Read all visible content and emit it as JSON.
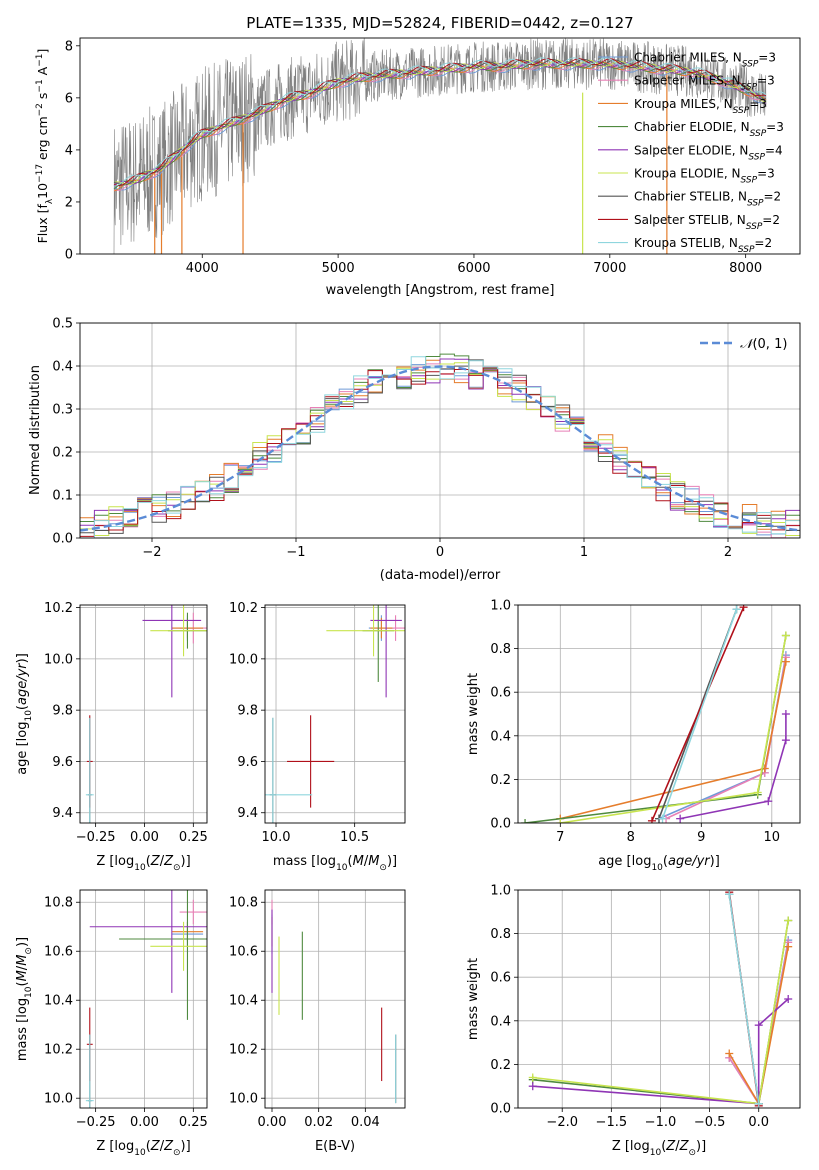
{
  "title": "PLATE=1335, MJD=52824, FIBERID=0442, z=0.127",
  "colors": {
    "Chabrier MILES": "#6f9ad8",
    "Salpeter MILES": "#e880b6",
    "Kroupa MILES": "#e57d2c",
    "Chabrier ELODIE": "#4f8a3f",
    "Salpeter ELODIE": "#8f35b5",
    "Kroupa ELODIE": "#c8e44f",
    "Chabrier STELIB": "#555555",
    "Salpeter STELIB": "#b0101a",
    "Kroupa STELIB": "#8fd6de",
    "data": "#808080",
    "normal": "#5b8bd6",
    "grid": "#b0b0b0"
  },
  "chart_data": [
    {
      "id": "spectrum",
      "type": "line",
      "title": "PLATE=1335, MJD=52824, FIBERID=0442, z=0.127",
      "xlabel": "wavelength [Angstrom, rest frame]",
      "ylabel": "Flux [f",
      "xlim": [
        3100,
        8400
      ],
      "ylim": [
        0,
        8.3
      ],
      "xticks": [
        4000,
        5000,
        6000,
        7000,
        8000
      ],
      "yticks": [
        0,
        2,
        4,
        6,
        8
      ],
      "grid": false,
      "legend_position": "right",
      "legend": [
        {
          "model": "Chabrier MILES",
          "nssp": "3"
        },
        {
          "model": "Salpeter MILES",
          "nssp": "3"
        },
        {
          "model": "Kroupa MILES",
          "nssp": "3"
        },
        {
          "model": "Chabrier ELODIE",
          "nssp": "3"
        },
        {
          "model": "Salpeter ELODIE",
          "nssp": "4"
        },
        {
          "model": "Kroupa ELODIE",
          "nssp": "3"
        },
        {
          "model": "Chabrier STELIB",
          "nssp": "2"
        },
        {
          "model": "Salpeter STELIB",
          "nssp": "2"
        },
        {
          "model": "Kroupa STELIB",
          "nssp": "2"
        }
      ],
      "continuum": {
        "x": [
          3350,
          3500,
          3700,
          3900,
          4000,
          4200,
          4400,
          4600,
          4800,
          5000,
          5200,
          5400,
          5600,
          5800,
          6000,
          6200,
          6400,
          6600,
          6800,
          7000,
          7200,
          7400,
          7600,
          7800,
          8000,
          8150
        ],
        "y": [
          2.6,
          2.8,
          3.3,
          4.2,
          4.6,
          5.0,
          5.4,
          5.9,
          6.2,
          6.6,
          6.8,
          6.9,
          7.0,
          7.1,
          7.2,
          7.2,
          7.3,
          7.3,
          7.3,
          7.3,
          7.2,
          7.1,
          7.0,
          6.7,
          6.3,
          5.9
        ]
      }
    },
    {
      "id": "residuals",
      "type": "line",
      "xlabel": "(data-model)/error",
      "ylabel": "Normed distribution",
      "xlim": [
        -2.5,
        2.5
      ],
      "ylim": [
        0,
        0.5
      ],
      "xticks": [
        -2,
        -1,
        0,
        1,
        2
      ],
      "yticks": [
        0.0,
        0.1,
        0.2,
        0.3,
        0.4,
        0.5
      ],
      "grid": true,
      "legend_position": "top-right",
      "reference_curve": "N(0,1)",
      "bin_width": 0.1,
      "bins_from": -2.5,
      "histogram": [
        0.02,
        0.03,
        0.04,
        0.05,
        0.06,
        0.07,
        0.08,
        0.09,
        0.1,
        0.12,
        0.14,
        0.16,
        0.19,
        0.21,
        0.22,
        0.24,
        0.27,
        0.3,
        0.32,
        0.35,
        0.36,
        0.37,
        0.38,
        0.39,
        0.39,
        0.4,
        0.39,
        0.38,
        0.37,
        0.36,
        0.35,
        0.33,
        0.31,
        0.28,
        0.26,
        0.23,
        0.21,
        0.18,
        0.16,
        0.14,
        0.12,
        0.1,
        0.09,
        0.07,
        0.06,
        0.05,
        0.045,
        0.04,
        0.035,
        0.03
      ]
    },
    {
      "id": "age-vs-z",
      "type": "scatter",
      "xlabel": "Z [log",
      "ylabel": "age  [log",
      "xlim": [
        -0.33,
        0.32
      ],
      "ylim": [
        9.36,
        10.21
      ],
      "xticks": [
        -0.25,
        0.0,
        0.25
      ],
      "yticks": [
        9.4,
        9.6,
        9.8,
        10.0,
        10.2
      ],
      "grid": true,
      "points": [
        {
          "model": "Chabrier MILES",
          "x": 0.22,
          "y": 10.12,
          "xerr": 0.08,
          "yerr": 0.05
        },
        {
          "model": "Salpeter MILES",
          "x": 0.25,
          "y": 10.12,
          "xerr": 0.07,
          "yerr": 0.06
        },
        {
          "model": "Kroupa MILES",
          "x": 0.22,
          "y": 10.12,
          "xerr": 0.08,
          "yerr": 0.04
        },
        {
          "model": "Chabrier ELODIE",
          "x": 0.22,
          "y": 10.11,
          "xerr": 0.1,
          "yerr": 0.07
        },
        {
          "model": "Salpeter ELODIE",
          "x": 0.14,
          "y": 10.15,
          "xerr": 0.15,
          "yerr": 0.3
        },
        {
          "model": "Kroupa ELODIE",
          "x": 0.2,
          "y": 10.11,
          "xerr": 0.17,
          "yerr": 0.1
        },
        {
          "model": "Chabrier STELIB",
          "x": -0.28,
          "y": 9.47,
          "xerr": 0.01,
          "yerr": 0.3
        },
        {
          "model": "Salpeter STELIB",
          "x": -0.28,
          "y": 9.6,
          "xerr": 0.015,
          "yerr": 0.18
        },
        {
          "model": "Kroupa STELIB",
          "x": -0.28,
          "y": 9.47,
          "xerr": 0.02,
          "yerr": 0.3
        }
      ]
    },
    {
      "id": "age-vs-mass",
      "type": "scatter",
      "xlabel": "mass [log",
      "xlim": [
        9.93,
        10.82
      ],
      "ylim": [
        9.36,
        10.21
      ],
      "xticks": [
        10.0,
        10.5
      ],
      "yticks": [
        9.4,
        9.6,
        9.8,
        10.0,
        10.2
      ],
      "grid": true,
      "points": [
        {
          "model": "Chabrier MILES",
          "x": 10.67,
          "y": 10.12,
          "xerr": 0.08,
          "yerr": 0.05
        },
        {
          "model": "Salpeter MILES",
          "x": 10.76,
          "y": 10.12,
          "xerr": 0.06,
          "yerr": 0.05
        },
        {
          "model": "Kroupa MILES",
          "x": 10.67,
          "y": 10.12,
          "xerr": 0.07,
          "yerr": 0.04
        },
        {
          "model": "Chabrier ELODIE",
          "x": 10.65,
          "y": 10.11,
          "xerr": 0.1,
          "yerr": 0.2
        },
        {
          "model": "Salpeter ELODIE",
          "x": 10.7,
          "y": 10.15,
          "xerr": 0.1,
          "yerr": 0.3
        },
        {
          "model": "Kroupa ELODIE",
          "x": 10.62,
          "y": 10.11,
          "xerr": 0.3,
          "yerr": 0.1
        },
        {
          "model": "Chabrier STELIB",
          "x": 9.98,
          "y": 9.47,
          "xerr": 0.02,
          "yerr": 0.3
        },
        {
          "model": "Salpeter STELIB",
          "x": 10.22,
          "y": 9.6,
          "xerr": 0.15,
          "yerr": 0.18
        },
        {
          "model": "Kroupa STELIB",
          "x": 9.98,
          "y": 9.47,
          "xerr": 0.25,
          "yerr": 0.3
        }
      ]
    },
    {
      "id": "weight-vs-age",
      "type": "line",
      "xlabel": "age  [log",
      "ylabel": "mass weight",
      "xlim": [
        6.4,
        10.4
      ],
      "ylim": [
        0,
        1
      ],
      "xticks": [
        7,
        8,
        9,
        10
      ],
      "yticks": [
        0.0,
        0.2,
        0.4,
        0.6,
        0.8,
        1.0
      ],
      "grid": true,
      "series": [
        {
          "model": "Chabrier MILES",
          "x": [
            8.4,
            9.9,
            10.2
          ],
          "y": [
            0.02,
            0.23,
            0.77
          ]
        },
        {
          "model": "Salpeter MILES",
          "x": [
            8.5,
            9.9,
            10.2
          ],
          "y": [
            0.02,
            0.23,
            0.76
          ]
        },
        {
          "model": "Kroupa MILES",
          "x": [
            7.0,
            9.9,
            10.2
          ],
          "y": [
            0.02,
            0.25,
            0.74
          ]
        },
        {
          "model": "Chabrier ELODIE",
          "x": [
            6.5,
            9.8,
            10.2
          ],
          "y": [
            0.0,
            0.13,
            0.86
          ]
        },
        {
          "model": "Salpeter ELODIE",
          "x": [
            8.7,
            9.95,
            10.2,
            10.2
          ],
          "y": [
            0.02,
            0.1,
            0.38,
            0.5
          ]
        },
        {
          "model": "Kroupa ELODIE",
          "x": [
            7.0,
            9.8,
            10.2
          ],
          "y": [
            0.0,
            0.14,
            0.86
          ]
        },
        {
          "model": "Chabrier STELIB",
          "x": [
            8.4,
            9.5
          ],
          "y": [
            0.02,
            0.98
          ]
        },
        {
          "model": "Salpeter STELIB",
          "x": [
            8.3,
            9.6
          ],
          "y": [
            0.01,
            0.99
          ]
        },
        {
          "model": "Kroupa STELIB",
          "x": [
            8.45,
            9.5
          ],
          "y": [
            0.02,
            0.98
          ]
        }
      ]
    },
    {
      "id": "mass-vs-z",
      "type": "scatter",
      "xlabel": "Z [log",
      "ylabel": "mass [log",
      "xlim": [
        -0.33,
        0.32
      ],
      "ylim": [
        9.96,
        10.85
      ],
      "xticks": [
        -0.25,
        0.0,
        0.25
      ],
      "yticks": [
        10.0,
        10.2,
        10.4,
        10.6,
        10.8
      ],
      "grid": true,
      "points": [
        {
          "model": "Chabrier MILES",
          "x": 0.22,
          "y": 10.67,
          "xerr": 0.08,
          "yerr": 0.05
        },
        {
          "model": "Salpeter MILES",
          "x": 0.25,
          "y": 10.76,
          "xerr": 0.07,
          "yerr": 0.05
        },
        {
          "model": "Kroupa MILES",
          "x": 0.22,
          "y": 10.68,
          "xerr": 0.08,
          "yerr": 0.04
        },
        {
          "model": "Chabrier ELODIE",
          "x": 0.22,
          "y": 10.65,
          "xerr": 0.35,
          "yerr": 0.33
        },
        {
          "model": "Salpeter ELODIE",
          "x": 0.14,
          "y": 10.7,
          "xerr": 0.42,
          "yerr": 0.27
        },
        {
          "model": "Kroupa ELODIE",
          "x": 0.2,
          "y": 10.62,
          "xerr": 0.17,
          "yerr": 0.1
        },
        {
          "model": "Chabrier STELIB",
          "x": -0.28,
          "y": 9.99,
          "xerr": 0.01,
          "yerr": 0.27
        },
        {
          "model": "Salpeter STELIB",
          "x": -0.28,
          "y": 10.22,
          "xerr": 0.015,
          "yerr": 0.15
        },
        {
          "model": "Kroupa STELIB",
          "x": -0.28,
          "y": 9.99,
          "xerr": 0.02,
          "yerr": 0.27
        }
      ]
    },
    {
      "id": "mass-vs-ebv",
      "type": "scatter",
      "xlabel": "E(B-V)",
      "xlim": [
        -0.003,
        0.057
      ],
      "ylim": [
        9.96,
        10.85
      ],
      "xticks": [
        0.0,
        0.02,
        0.04
      ],
      "yticks": [
        10.0,
        10.2,
        10.4,
        10.6,
        10.8
      ],
      "grid": true,
      "points": [
        {
          "model": "Chabrier MILES",
          "x": 0.0,
          "y": 10.67,
          "xerr": 0,
          "yerr": 0.08
        },
        {
          "model": "Salpeter MILES",
          "x": 0.0,
          "y": 10.76,
          "xerr": 0,
          "yerr": 0.05
        },
        {
          "model": "Kroupa MILES",
          "x": 0.0,
          "y": 10.68,
          "xerr": 0,
          "yerr": 0.06
        },
        {
          "model": "Chabrier ELODIE",
          "x": 0.013,
          "y": 10.5,
          "xerr": 0,
          "yerr": 0.18
        },
        {
          "model": "Salpeter ELODIE",
          "x": 0.0,
          "y": 10.6,
          "xerr": 0,
          "yerr": 0.17
        },
        {
          "model": "Kroupa ELODIE",
          "x": 0.003,
          "y": 10.5,
          "xerr": 0,
          "yerr": 0.16
        },
        {
          "model": "Chabrier STELIB",
          "x": 0.053,
          "y": 10.12,
          "xerr": 0,
          "yerr": 0.14
        },
        {
          "model": "Salpeter STELIB",
          "x": 0.047,
          "y": 10.22,
          "xerr": 0,
          "yerr": 0.15
        },
        {
          "model": "Kroupa STELIB",
          "x": 0.053,
          "y": 10.12,
          "xerr": 0,
          "yerr": 0.14
        }
      ]
    },
    {
      "id": "weight-vs-z",
      "type": "line",
      "xlabel": "Z [log",
      "ylabel": "mass weight",
      "xlim": [
        -2.45,
        0.42
      ],
      "ylim": [
        0,
        1
      ],
      "xticks": [
        -2.0,
        -1.5,
        -1.0,
        -0.5,
        0.0
      ],
      "yticks": [
        0.0,
        0.2,
        0.4,
        0.6,
        0.8,
        1.0
      ],
      "grid": true,
      "series": [
        {
          "model": "Chabrier MILES",
          "x": [
            -0.3,
            0.0,
            0.3
          ],
          "y": [
            0.23,
            0.02,
            0.77
          ]
        },
        {
          "model": "Salpeter MILES",
          "x": [
            -0.3,
            0.0,
            0.3
          ],
          "y": [
            0.23,
            0.02,
            0.76
          ]
        },
        {
          "model": "Kroupa MILES",
          "x": [
            -0.3,
            0.0,
            0.3
          ],
          "y": [
            0.25,
            0.02,
            0.74
          ]
        },
        {
          "model": "Chabrier ELODIE",
          "x": [
            -2.3,
            0.0,
            0.3
          ],
          "y": [
            0.13,
            0.02,
            0.86
          ]
        },
        {
          "model": "Salpeter ELODIE",
          "x": [
            -2.3,
            0.0,
            0.0,
            0.3
          ],
          "y": [
            0.1,
            0.02,
            0.38,
            0.5
          ]
        },
        {
          "model": "Kroupa ELODIE",
          "x": [
            -2.3,
            0.0,
            0.3
          ],
          "y": [
            0.14,
            0.02,
            0.86
          ]
        },
        {
          "model": "Chabrier STELIB",
          "x": [
            -0.3,
            0.0
          ],
          "y": [
            0.98,
            0.02
          ]
        },
        {
          "model": "Salpeter STELIB",
          "x": [
            -0.3,
            0.0
          ],
          "y": [
            0.99,
            0.01
          ]
        },
        {
          "model": "Kroupa STELIB",
          "x": [
            -0.3,
            0.0
          ],
          "y": [
            0.98,
            0.02
          ]
        }
      ]
    }
  ]
}
